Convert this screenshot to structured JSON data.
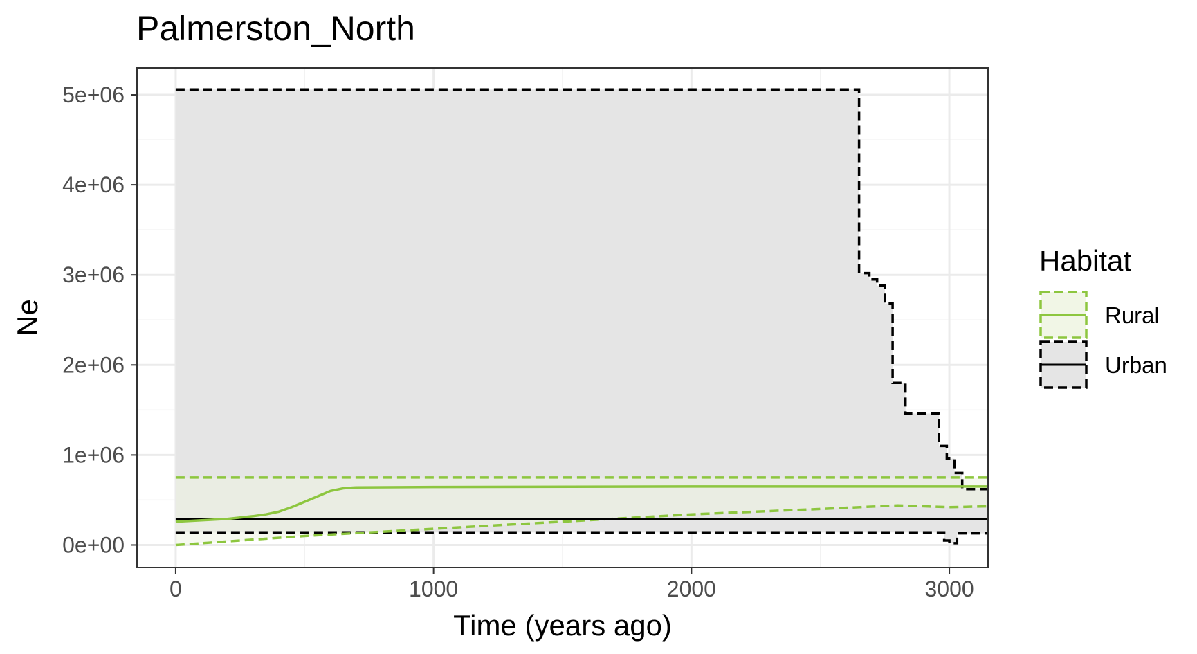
{
  "chart_data": {
    "type": "line",
    "title": "Palmerston_North",
    "xlabel": "Time (years ago)",
    "ylabel": "Ne",
    "xlim": [
      -150,
      3150
    ],
    "ylim": [
      -250000,
      5300000
    ],
    "x_ticks": [
      0,
      1000,
      2000,
      3000
    ],
    "x_tick_labels": [
      "0",
      "1000",
      "2000",
      "3000"
    ],
    "y_ticks": [
      0,
      1000000,
      2000000,
      3000000,
      4000000,
      5000000
    ],
    "y_tick_labels": [
      "0e+00",
      "1e+06",
      "2e+06",
      "3e+06",
      "4e+06",
      "5e+06"
    ],
    "grid": true,
    "legend": {
      "title": "Habitat",
      "position": "right",
      "entries": [
        "Rural",
        "Urban"
      ]
    },
    "series": [
      {
        "name": "Rural",
        "color": "#8dc63f",
        "fill": "#eef4e2",
        "median": [
          [
            0,
            260000
          ],
          [
            100,
            275000
          ],
          [
            200,
            290000
          ],
          [
            300,
            320000
          ],
          [
            350,
            340000
          ],
          [
            400,
            370000
          ],
          [
            450,
            420000
          ],
          [
            500,
            480000
          ],
          [
            550,
            540000
          ],
          [
            600,
            600000
          ],
          [
            650,
            630000
          ],
          [
            700,
            640000
          ],
          [
            1000,
            645000
          ],
          [
            2000,
            650000
          ],
          [
            3000,
            650000
          ],
          [
            3150,
            650000
          ]
        ],
        "upper": [
          [
            0,
            750000
          ],
          [
            3150,
            750000
          ]
        ],
        "lower": [
          [
            0,
            0
          ],
          [
            200,
            40000
          ],
          [
            500,
            100000
          ],
          [
            1000,
            180000
          ],
          [
            1500,
            260000
          ],
          [
            2000,
            340000
          ],
          [
            2500,
            400000
          ],
          [
            2800,
            440000
          ],
          [
            3000,
            420000
          ],
          [
            3150,
            430000
          ]
        ]
      },
      {
        "name": "Urban",
        "color": "#000000",
        "fill": "#e5e5e5",
        "median": [
          [
            0,
            290000
          ],
          [
            3150,
            290000
          ]
        ],
        "upper": [
          [
            0,
            5060000
          ],
          [
            2650,
            5060000
          ],
          [
            2650,
            3020000
          ],
          [
            2690,
            3020000
          ],
          [
            2690,
            2950000
          ],
          [
            2720,
            2950000
          ],
          [
            2720,
            2880000
          ],
          [
            2750,
            2880000
          ],
          [
            2750,
            2680000
          ],
          [
            2780,
            2680000
          ],
          [
            2780,
            1800000
          ],
          [
            2830,
            1800000
          ],
          [
            2830,
            1460000
          ],
          [
            2960,
            1460000
          ],
          [
            2960,
            1100000
          ],
          [
            2990,
            1100000
          ],
          [
            2990,
            960000
          ],
          [
            3020,
            960000
          ],
          [
            3020,
            800000
          ],
          [
            3050,
            800000
          ],
          [
            3050,
            620000
          ],
          [
            3150,
            620000
          ]
        ],
        "lower": [
          [
            0,
            140000
          ],
          [
            2980,
            140000
          ],
          [
            2980,
            50000
          ],
          [
            3000,
            50000
          ],
          [
            3000,
            20000
          ],
          [
            3030,
            20000
          ],
          [
            3030,
            130000
          ],
          [
            3150,
            130000
          ]
        ]
      }
    ]
  }
}
